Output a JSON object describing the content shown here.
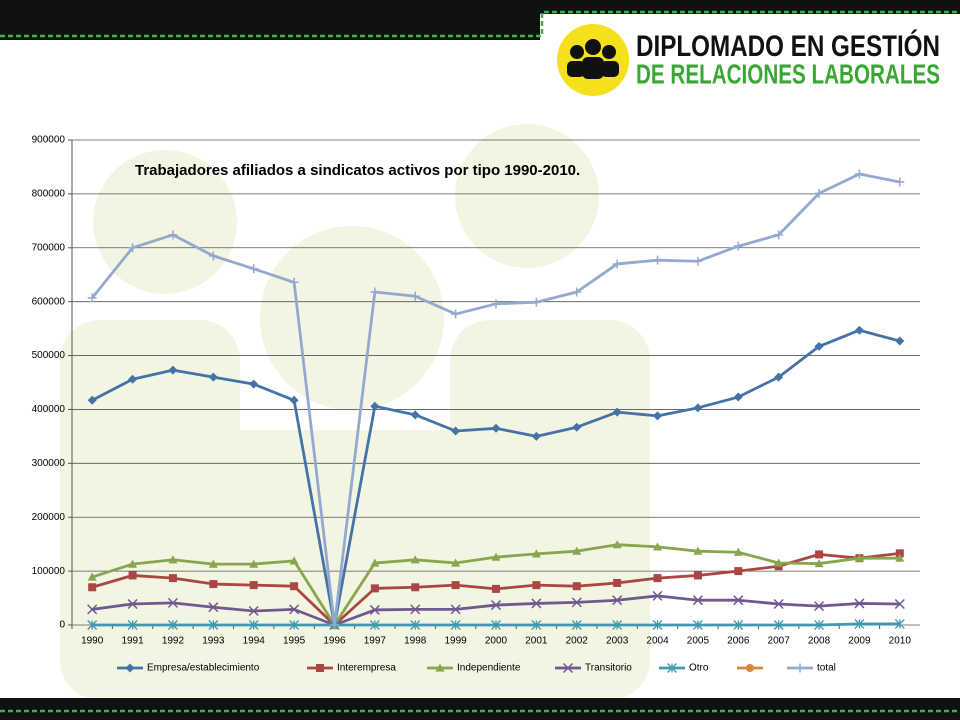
{
  "header": {
    "title_line1": "DIPLOMADO EN GESTIÓN",
    "title_line2": "DE RELACIONES LABORALES"
  },
  "chart_data": {
    "type": "line",
    "title": "Trabajadores afiliados a sindicatos activos por tipo 1990-2010.",
    "categories": [
      "1990",
      "1991",
      "1992",
      "1993",
      "1994",
      "1995",
      "1996",
      "1997",
      "1998",
      "1999",
      "2000",
      "2001",
      "2002",
      "2003",
      "2004",
      "2005",
      "2006",
      "2007",
      "2008",
      "2009",
      "2010"
    ],
    "ylim": [
      0,
      900000
    ],
    "yticks": [
      0,
      100000,
      200000,
      300000,
      400000,
      500000,
      600000,
      700000,
      800000,
      900000
    ],
    "grid": true,
    "legend": "bottom",
    "series": [
      {
        "name": "Empresa/establecimiento",
        "color": "#4572a7",
        "marker": "diamond",
        "values": [
          417000,
          456000,
          473000,
          460000,
          447000,
          417000,
          0,
          406000,
          390000,
          360000,
          365000,
          350000,
          367000,
          395000,
          388000,
          403000,
          423000,
          460000,
          517000,
          547000,
          527000
        ]
      },
      {
        "name": "Interempresa",
        "color": "#aa4643",
        "marker": "square",
        "values": [
          70000,
          92000,
          87000,
          76000,
          74000,
          72000,
          0,
          68000,
          70000,
          74000,
          67000,
          74000,
          72000,
          78000,
          87000,
          92000,
          100000,
          109000,
          131000,
          124000,
          133000
        ]
      },
      {
        "name": "Independiente",
        "color": "#89a54e",
        "marker": "triangle",
        "values": [
          89000,
          113000,
          121000,
          113000,
          113000,
          119000,
          0,
          115000,
          121000,
          115000,
          126000,
          132000,
          137000,
          149000,
          145000,
          137000,
          135000,
          115000,
          114000,
          124000,
          124000
        ]
      },
      {
        "name": "Transitorio",
        "color": "#71588f",
        "marker": "x",
        "values": [
          29000,
          39000,
          41000,
          33000,
          26000,
          29000,
          0,
          28000,
          29000,
          29000,
          37000,
          40000,
          42000,
          46000,
          54000,
          46000,
          46000,
          39000,
          35000,
          40000,
          39000
        ]
      },
      {
        "name": "Otro",
        "color": "#4198af",
        "marker": "star",
        "values": [
          0,
          0,
          0,
          0,
          0,
          0,
          0,
          0,
          0,
          0,
          0,
          0,
          0,
          0,
          0,
          0,
          0,
          0,
          0,
          2000,
          2000
        ]
      },
      {
        "color": "#db843d",
        "marker": "circle",
        "values": [
          null,
          null,
          null,
          null,
          null,
          null,
          null,
          null,
          null,
          null,
          null,
          null,
          null,
          null,
          null,
          null,
          null,
          null,
          null,
          null,
          null
        ]
      },
      {
        "name": "total",
        "color": "#93a9cf",
        "marker": "plus",
        "values": [
          607000,
          700000,
          724000,
          685000,
          661000,
          636000,
          0,
          618000,
          610000,
          577000,
          596000,
          599000,
          618000,
          670000,
          677000,
          675000,
          703000,
          724000,
          801000,
          837000,
          822000
        ]
      }
    ]
  }
}
